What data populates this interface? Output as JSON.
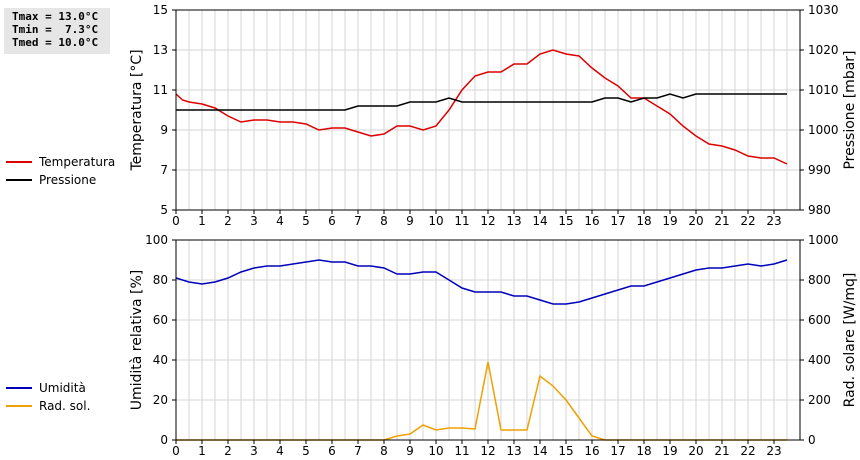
{
  "stats": {
    "tmax": "Tmax = 13.0°C",
    "tmin": "Tmin =  7.3°C",
    "tmed": "Tmed = 10.0°C"
  },
  "legend_top": [
    {
      "label": "Temperatura",
      "color": "#dd0000"
    },
    {
      "label": "Pressione",
      "color": "#000000"
    }
  ],
  "legend_bottom": [
    {
      "label": "Umidità",
      "color": "#0000bb"
    },
    {
      "label": "Rad. sol.",
      "color": "#f0a000"
    }
  ],
  "chart_data": [
    {
      "type": "line",
      "x_ticks": [
        "0",
        "1",
        "2",
        "3",
        "4",
        "5",
        "6",
        "7",
        "8",
        "9",
        "10",
        "11",
        "12",
        "13",
        "14",
        "15",
        "16",
        "17",
        "18",
        "19",
        "20",
        "21",
        "22",
        "23"
      ],
      "xlim": [
        0,
        24
      ],
      "grid": true,
      "y_left": {
        "label": "Temperatura [°C]",
        "lim": [
          5,
          15
        ],
        "ticks": [
          "5",
          "7",
          "9",
          "11",
          "13",
          "15"
        ]
      },
      "y_right": {
        "label": "Pressione [mbar]",
        "lim": [
          980,
          1030
        ],
        "ticks": [
          "980",
          "990",
          "1000",
          "1010",
          "1020",
          "1030"
        ]
      },
      "series": [
        {
          "name": "Temperatura",
          "axis": "left",
          "color": "#dd0000",
          "x": [
            0,
            0.25,
            0.5,
            1,
            1.5,
            2,
            2.5,
            3,
            3.5,
            4,
            4.5,
            5,
            5.5,
            6,
            6.5,
            7,
            7.5,
            8,
            8.5,
            9,
            9.5,
            10,
            10.5,
            11,
            11.5,
            12,
            12.5,
            13,
            13.5,
            14,
            14.5,
            15,
            15.5,
            16,
            16.5,
            17,
            17.5,
            18,
            18.5,
            19,
            19.5,
            20,
            20.5,
            21,
            21.5,
            22,
            22.5,
            23,
            23.5
          ],
          "values": [
            10.8,
            10.5,
            10.4,
            10.3,
            10.1,
            9.7,
            9.4,
            9.5,
            9.5,
            9.4,
            9.4,
            9.3,
            9.0,
            9.1,
            9.1,
            8.9,
            8.7,
            8.8,
            9.2,
            9.2,
            9.0,
            9.2,
            10.0,
            11.0,
            11.7,
            11.9,
            11.9,
            12.3,
            12.3,
            12.8,
            13.0,
            12.8,
            12.7,
            12.1,
            11.6,
            11.2,
            10.6,
            10.6,
            10.2,
            9.8,
            9.2,
            8.7,
            8.3,
            8.2,
            8.0,
            7.7,
            7.6,
            7.6,
            7.3
          ]
        },
        {
          "name": "Pressione",
          "axis": "right",
          "color": "#000000",
          "x": [
            0,
            2,
            4,
            6.5,
            7,
            8.5,
            9,
            10,
            10.5,
            11,
            12,
            14,
            15,
            16,
            16.5,
            17,
            17.5,
            18,
            18.5,
            19,
            19.5,
            20,
            21,
            22,
            23,
            23.5
          ],
          "values": [
            1005,
            1005,
            1005,
            1005,
            1006,
            1006,
            1007,
            1007,
            1008,
            1007,
            1007,
            1007,
            1007,
            1007,
            1008,
            1008,
            1007,
            1008,
            1008,
            1009,
            1008,
            1009,
            1009,
            1009,
            1009,
            1009
          ]
        }
      ]
    },
    {
      "type": "line",
      "x_ticks": [
        "0",
        "1",
        "2",
        "3",
        "4",
        "5",
        "6",
        "7",
        "8",
        "9",
        "10",
        "11",
        "12",
        "13",
        "14",
        "15",
        "16",
        "17",
        "18",
        "19",
        "20",
        "21",
        "22",
        "23"
      ],
      "xlim": [
        0,
        24
      ],
      "grid": true,
      "y_left": {
        "label": "Umidità relativa [%]",
        "lim": [
          0,
          100
        ],
        "ticks": [
          "0",
          "20",
          "40",
          "60",
          "80",
          "100"
        ]
      },
      "y_right": {
        "label": "Rad. solare [W/mq]",
        "lim": [
          0,
          1000
        ],
        "ticks": [
          "0",
          "200",
          "400",
          "600",
          "800",
          "1000"
        ]
      },
      "series": [
        {
          "name": "Umidità",
          "axis": "left",
          "color": "#0000bb",
          "x": [
            0,
            0.5,
            1,
            1.5,
            2,
            2.5,
            3,
            3.5,
            4,
            4.5,
            5,
            5.5,
            6,
            6.5,
            7,
            7.5,
            8,
            8.5,
            9,
            9.5,
            10,
            10.5,
            11,
            11.5,
            12,
            12.5,
            13,
            13.5,
            14,
            14.5,
            15,
            15.5,
            16,
            16.5,
            17,
            17.5,
            18,
            18.5,
            19,
            19.5,
            20,
            20.5,
            21,
            21.5,
            22,
            22.5,
            23,
            23.5
          ],
          "values": [
            81,
            79,
            78,
            79,
            81,
            84,
            86,
            87,
            87,
            88,
            89,
            90,
            89,
            89,
            87,
            87,
            86,
            83,
            83,
            84,
            84,
            80,
            76,
            74,
            74,
            74,
            72,
            72,
            70,
            68,
            68,
            69,
            71,
            73,
            75,
            77,
            77,
            79,
            81,
            83,
            85,
            86,
            86,
            87,
            88,
            87,
            88,
            90
          ]
        },
        {
          "name": "Rad. sol.",
          "axis": "right",
          "color": "#f0a000",
          "x": [
            0,
            1,
            2,
            3,
            4,
            5,
            6,
            7,
            8,
            8.5,
            9,
            9.5,
            10,
            10.5,
            11,
            11.5,
            12,
            12.5,
            13,
            13.5,
            14,
            14.5,
            15,
            15.5,
            16,
            16.5,
            17,
            18,
            19,
            20,
            21,
            22,
            23,
            23.5
          ],
          "values": [
            0,
            0,
            0,
            0,
            0,
            0,
            0,
            0,
            0,
            20,
            30,
            75,
            50,
            60,
            60,
            55,
            390,
            50,
            50,
            50,
            320,
            270,
            200,
            110,
            20,
            0,
            0,
            0,
            0,
            0,
            0,
            0,
            0,
            0
          ]
        }
      ]
    }
  ]
}
